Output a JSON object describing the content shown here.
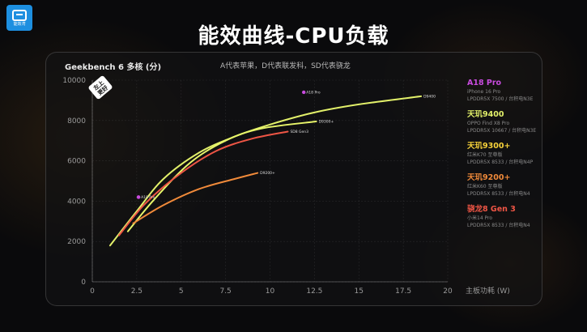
{
  "logo": {
    "text": "能效湾"
  },
  "page_title": "能效曲线-CPU负载",
  "chart_data": {
    "type": "line",
    "title": "Geekbench 6 多核 (分)",
    "note": "A代表苹果，D代表联发科，SD代表骁龙",
    "xlabel": "主板功耗 (W)",
    "ylabel": "Geekbench 6 多核 (分)",
    "xlim": [
      0,
      20
    ],
    "ylim": [
      0,
      10000
    ],
    "xticks": [
      0,
      2.5,
      5,
      7.5,
      10,
      12.5,
      15,
      17.5,
      20
    ],
    "yticks": [
      0,
      2000,
      4000,
      6000,
      8000,
      10000
    ],
    "grid": true,
    "series": [
      {
        "name": "A18 Pro",
        "label": "A18 Pro",
        "color": "#c84bde",
        "label_side": "right",
        "points": [
          [
            2.6,
            4200
          ],
          [
            11.9,
            9400
          ]
        ]
      },
      {
        "name": "D9400",
        "label": "D9400",
        "color": "#e2f06a",
        "label_side": "right",
        "points": [
          [
            1.0,
            1800
          ],
          [
            2.5,
            3500
          ],
          [
            4.0,
            5100
          ],
          [
            6.0,
            6400
          ],
          [
            8.0,
            7200
          ],
          [
            10.0,
            7800
          ],
          [
            12.5,
            8400
          ],
          [
            15.0,
            8800
          ],
          [
            18.5,
            9200
          ]
        ]
      },
      {
        "name": "D9300+",
        "label": "D9300+",
        "color": "#e8f56a",
        "label_side": "right",
        "points": [
          [
            2.0,
            2500
          ],
          [
            3.5,
            4100
          ],
          [
            5.5,
            5900
          ],
          [
            7.5,
            7000
          ],
          [
            9.5,
            7600
          ],
          [
            12.6,
            7950
          ]
        ]
      },
      {
        "name": "SD8 Gen3",
        "label": "SD8 Gen3",
        "color": "#ee5545",
        "label_side": "right",
        "points": [
          [
            1.5,
            2300
          ],
          [
            3.0,
            3900
          ],
          [
            5.0,
            5400
          ],
          [
            7.0,
            6500
          ],
          [
            9.0,
            7100
          ],
          [
            11.0,
            7450
          ]
        ]
      },
      {
        "name": "D9200+",
        "label": "D9200+",
        "color": "#f08a3a",
        "label_side": "right",
        "points": [
          [
            2.3,
            2900
          ],
          [
            4.0,
            3800
          ],
          [
            6.0,
            4600
          ],
          [
            8.0,
            5100
          ],
          [
            9.3,
            5400
          ]
        ]
      },
      {
        "name": "A18 Pro low",
        "label": "A18 Pro",
        "color": "#c84bde",
        "label_side": "left",
        "points": [
          [
            2.6,
            4200
          ]
        ]
      }
    ],
    "stamp": [
      "左上",
      "更好"
    ]
  },
  "legend": [
    {
      "name": "A18 Pro",
      "color": "#c84bde",
      "sub1": "iPhone 16 Pro",
      "sub2": "LPDDR5X 7500 / 台积电N3E"
    },
    {
      "name": "天玑9400",
      "color": "#e2f06a",
      "sub1": "OPPO Find X8 Pro",
      "sub2": "LPDDR5X 10667 / 台积电N3E"
    },
    {
      "name": "天玑9300+",
      "color": "#f7d23a",
      "sub1": "红米K70 至尊版",
      "sub2": "LPDDR5X 8533 / 台积电N4P"
    },
    {
      "name": "天玑9200+",
      "color": "#f08a3a",
      "sub1": "红米K60 至尊版",
      "sub2": "LPDDR5X 8533 / 台积电N4"
    },
    {
      "name": "骁龙8 Gen 3",
      "color": "#ee5545",
      "sub1": "小米14 Pro",
      "sub2": "LPDDR5X 8533 / 台积电N4"
    }
  ]
}
